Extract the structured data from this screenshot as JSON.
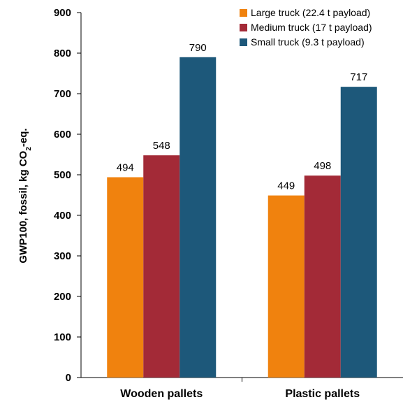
{
  "chart_data": {
    "type": "bar",
    "categories": [
      "Wooden pallets",
      "Plastic pallets"
    ],
    "series": [
      {
        "name": "Large truck (22.4 t payload)",
        "values": [
          494,
          449
        ],
        "color": "#F0820E"
      },
      {
        "name": "Medium truck (17 t payload)",
        "values": [
          548,
          498
        ],
        "color": "#A32A37"
      },
      {
        "name": "Small truck (9.3 t payload)",
        "values": [
          790,
          717
        ],
        "color": "#1D587A"
      }
    ],
    "ylabel": "GWP100, fossil, kg CO2-eq.",
    "ylabel_main": "GWP100, fossil, kg CO",
    "ylabel_sub": "2",
    "ylabel_tail": "-eq.",
    "ylim": [
      0,
      900
    ],
    "yticks": [
      0,
      100,
      200,
      300,
      400,
      500,
      600,
      700,
      800,
      900
    ],
    "grid": false,
    "legend_position": "top-right"
  }
}
